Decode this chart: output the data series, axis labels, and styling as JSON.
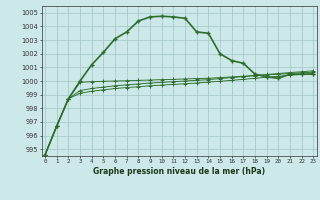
{
  "title": "Graphe pression niveau de la mer (hPa)",
  "background_color": "#cce8e8",
  "grid_color": "#aacccc",
  "line_color": "#2d6e2d",
  "ylim": [
    994.5,
    1005.5
  ],
  "yticks": [
    995,
    996,
    997,
    998,
    999,
    1000,
    1001,
    1002,
    1003,
    1004,
    1005
  ],
  "x_ticks": [
    0,
    1,
    2,
    3,
    4,
    5,
    6,
    7,
    8,
    9,
    10,
    11,
    12,
    13,
    14,
    15,
    16,
    17,
    18,
    19,
    20,
    21,
    22,
    23
  ],
  "series": [
    [
      994.6,
      996.7,
      998.7,
      1000.0,
      1001.2,
      1002.1,
      1003.1,
      1003.6,
      1004.4,
      1004.7,
      1004.75,
      1004.7,
      1004.6,
      1003.6,
      1003.5,
      1002.0,
      1001.5,
      1001.3,
      1000.5,
      1000.3,
      1000.2,
      1000.5,
      1000.5,
      1000.5
    ],
    [
      994.6,
      996.7,
      998.7,
      999.9,
      999.95,
      999.98,
      1000.0,
      1000.02,
      1000.05,
      1000.07,
      1000.1,
      1000.12,
      1000.15,
      1000.18,
      1000.2,
      1000.25,
      1000.3,
      1000.35,
      1000.4,
      1000.45,
      1000.5,
      1000.55,
      1000.6,
      1000.65
    ],
    [
      994.6,
      996.7,
      998.7,
      999.3,
      999.45,
      999.55,
      999.65,
      999.72,
      999.78,
      999.85,
      999.9,
      999.95,
      1000.0,
      1000.05,
      1000.1,
      1000.18,
      1000.25,
      1000.32,
      1000.4,
      1000.48,
      1000.55,
      1000.62,
      1000.68,
      1000.75
    ],
    [
      994.6,
      996.7,
      998.7,
      999.1,
      999.25,
      999.35,
      999.45,
      999.52,
      999.58,
      999.65,
      999.7,
      999.75,
      999.8,
      999.85,
      999.92,
      999.98,
      1000.05,
      1000.12,
      1000.2,
      1000.28,
      1000.35,
      1000.42,
      1000.48,
      1000.55
    ]
  ]
}
